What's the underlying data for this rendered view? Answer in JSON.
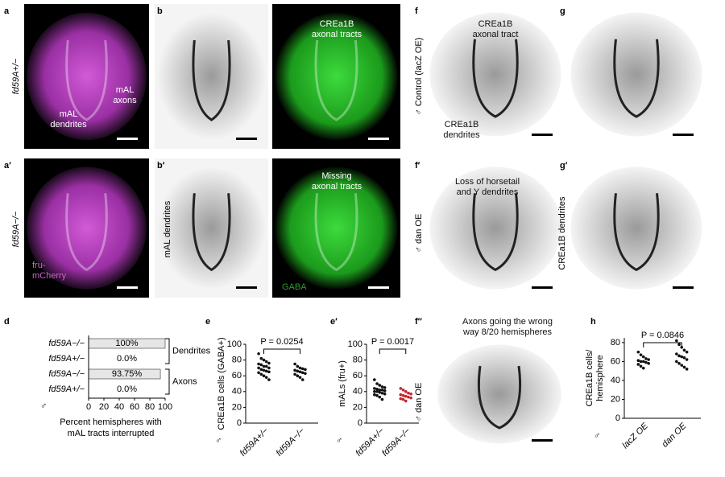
{
  "panel_letters": [
    "a",
    "b",
    "c",
    "f",
    "g",
    "a′",
    "b′",
    "c′",
    "f′",
    "g′",
    "d",
    "e",
    "e′",
    "f″",
    "h"
  ],
  "side_labels": [
    "fd59A+/−",
    "fd59A−/−",
    "mAL dendrites",
    "♂ Control (lacZ OE)",
    "♂ dan OE",
    "CREa1B dendrites",
    "♂ dan OE"
  ],
  "annotations": [
    [
      "mAL",
      "axons"
    ],
    [
      "mAL",
      "dendrites"
    ],
    [
      "CREa1B",
      "axonal tracts"
    ],
    [
      "fru-",
      "mCherry"
    ],
    [
      "Missing",
      "axonal tracts"
    ],
    [
      "GABA"
    ],
    [
      "CREa1B",
      "axonal tract"
    ],
    [
      "CREa1B",
      "dendrites"
    ],
    [
      "Loss of horsetail",
      "and Y dendrites"
    ],
    [
      "Axons going the wrong",
      "way 8/20 hemispheres"
    ]
  ],
  "chart_data": [
    {
      "type": "hbar",
      "categories": [
        "fd59A−/−",
        "fd59A+/−",
        "fd59A−/−",
        "fd59A+/−"
      ],
      "values": [
        100,
        0.0,
        93.75,
        0.0
      ],
      "value_labels": [
        "100%",
        "0.0%",
        "93.75%",
        "0.0%"
      ],
      "groups": [
        "Dendrites",
        "Axons"
      ],
      "xlim": [
        0,
        100
      ],
      "xticks": [
        0,
        20,
        40,
        60,
        80,
        100
      ],
      "xlabel": [
        "Percent hemispheres with",
        "mAL tracts interrupted"
      ],
      "symbol": "♂",
      "color": "#e6e6e6"
    },
    {
      "type": "strip",
      "ylabel": [
        "CREa1B cells (GABA+)"
      ],
      "categories": [
        "fd59A+/−",
        "fd59A−/−"
      ],
      "symbol": "♂",
      "annotation": "P = 0.0254",
      "ylim": [
        0,
        100
      ],
      "yticks": [
        0,
        20,
        40,
        60,
        80,
        100
      ],
      "series": [
        {
          "color": "#111111",
          "values": [
            88,
            82,
            80,
            78,
            76,
            75,
            74,
            72,
            72,
            70,
            70,
            68,
            67,
            66,
            65,
            64,
            62,
            60,
            58,
            55
          ]
        },
        {
          "color": "#111111",
          "values": [
            75,
            72,
            70,
            69,
            68,
            67,
            66,
            65,
            64,
            63,
            62,
            60,
            58,
            55
          ]
        }
      ]
    },
    {
      "type": "strip",
      "ylabel": [
        "mALs (fru+)"
      ],
      "categories": [
        "fd59A+/−",
        "fd59A−/−"
      ],
      "symbol": "♂",
      "annotation": "P = 0.0017",
      "ylim": [
        0,
        100
      ],
      "yticks": [
        0,
        20,
        40,
        60,
        80,
        100
      ],
      "series": [
        {
          "color": "#111111",
          "values": [
            55,
            50,
            48,
            46,
            45,
            44,
            43,
            42,
            42,
            41,
            40,
            40,
            39,
            38,
            37,
            36,
            35,
            33,
            30
          ]
        },
        {
          "color": "#c0262d",
          "values": [
            44,
            42,
            40,
            38,
            37,
            36,
            35,
            34,
            33,
            32,
            31,
            30,
            28
          ]
        }
      ]
    },
    {
      "type": "strip",
      "ylabel": [
        "CREa1B cells/",
        "hemisphere"
      ],
      "categories": [
        "lacZ OE",
        "dan OE"
      ],
      "symbol": "♂",
      "annotation": "P = 0.0846",
      "ylim": [
        0,
        85
      ],
      "yticks": [
        0,
        20,
        40,
        60,
        80
      ],
      "series": [
        {
          "color": "#111111",
          "values": [
            70,
            67,
            65,
            63,
            62,
            61,
            60,
            60,
            59,
            58,
            57,
            55,
            53
          ]
        },
        {
          "color": "#111111",
          "values": [
            82,
            78,
            75,
            72,
            70,
            68,
            66,
            65,
            64,
            62,
            60,
            58,
            56,
            54,
            52
          ]
        }
      ]
    }
  ]
}
